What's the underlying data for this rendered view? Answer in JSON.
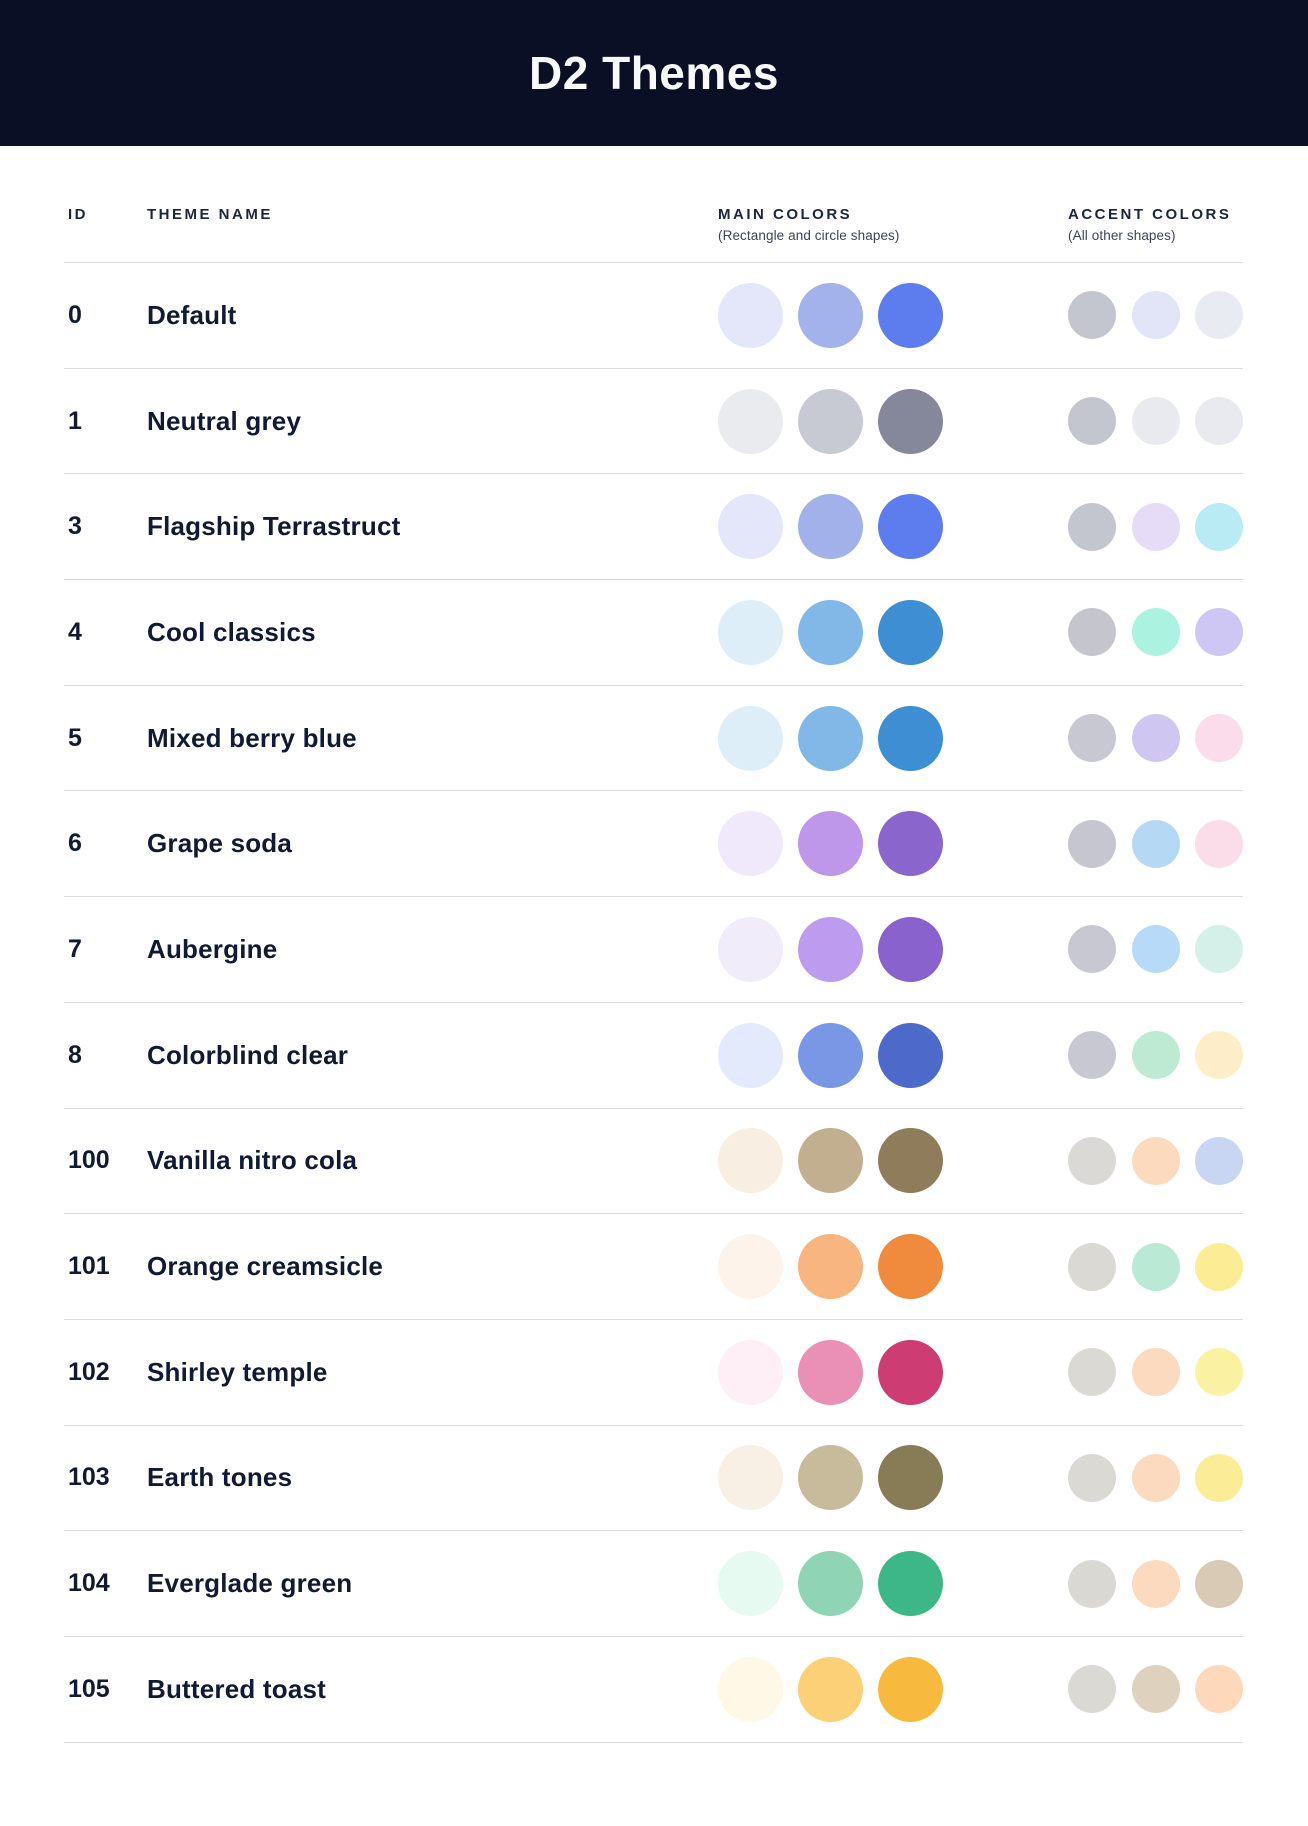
{
  "header": {
    "title": "D2 Themes",
    "background_color": "#0A0F25"
  },
  "table": {
    "columns": {
      "id": "ID",
      "theme_name": "THEME NAME",
      "main_colors": "MAIN COLORS",
      "main_colors_sub": "(Rectangle and circle shapes)",
      "accent_colors": "ACCENT COLORS",
      "accent_colors_sub": "(All other shapes)"
    },
    "rows": [
      {
        "id": "0",
        "name": "Default",
        "main_colors": [
          "#E4E7F9",
          "#A3B2EB",
          "#5D7DEE"
        ],
        "accent_colors": [
          "#C3C5CF",
          "#E2E4F8",
          "#E9EBF2"
        ]
      },
      {
        "id": "1",
        "name": "Neutral grey",
        "main_colors": [
          "#E9EBEE",
          "#C7CAD2",
          "#85889B"
        ],
        "accent_colors": [
          "#C3C5CF",
          "#E9EAEF",
          "#E9EAF0"
        ]
      },
      {
        "id": "3",
        "name": "Flagship Terrastruct",
        "main_colors": [
          "#E4E7F9",
          "#A2B1EA",
          "#5D7DEE"
        ],
        "accent_colors": [
          "#C3C5CF",
          "#E6DCF7",
          "#B9EBF5"
        ]
      },
      {
        "id": "4",
        "name": "Cool classics",
        "main_colors": [
          "#DDEEF9",
          "#82B8E8",
          "#3E8ED3"
        ],
        "accent_colors": [
          "#C5C5CD",
          "#ABF2E1",
          "#CEC6F3"
        ]
      },
      {
        "id": "5",
        "name": "Mixed berry blue",
        "main_colors": [
          "#DDEEF9",
          "#82B8E8",
          "#3E8ED3"
        ],
        "accent_colors": [
          "#C7C8D2",
          "#CFC7F1",
          "#FBDCEB"
        ]
      },
      {
        "id": "6",
        "name": "Grape soda",
        "main_colors": [
          "#F0E9FB",
          "#BE97EA",
          "#8A66CC"
        ],
        "accent_colors": [
          "#C5C6CF",
          "#B5D8F5",
          "#FBDCE9"
        ]
      },
      {
        "id": "7",
        "name": "Aubergine",
        "main_colors": [
          "#F0ECFA",
          "#BD9BEE",
          "#8A62CD"
        ],
        "accent_colors": [
          "#C7C8D1",
          "#B6DAF7",
          "#D5F0E9"
        ]
      },
      {
        "id": "8",
        "name": "Colorblind clear",
        "main_colors": [
          "#E3EAFB",
          "#7A97E6",
          "#4D6ACB"
        ],
        "accent_colors": [
          "#C7C8D2",
          "#BEEAD3",
          "#FDEDC8"
        ]
      },
      {
        "id": "100",
        "name": "Vanilla nitro cola",
        "main_colors": [
          "#F8EEE1",
          "#C2AF90",
          "#8E7C5A"
        ],
        "accent_colors": [
          "#DAD9D5",
          "#FCDABE",
          "#C8D6F4"
        ]
      },
      {
        "id": "101",
        "name": "Orange creamsicle",
        "main_colors": [
          "#FEF3EB",
          "#F9B580",
          "#F08B3D"
        ],
        "accent_colors": [
          "#DAD9D4",
          "#BAEAD5",
          "#FCEC94"
        ]
      },
      {
        "id": "102",
        "name": "Shirley temple",
        "main_colors": [
          "#FDEFF5",
          "#EA8FB5",
          "#CE3C74"
        ],
        "accent_colors": [
          "#DAD9D4",
          "#FCDAC0",
          "#FBF1A2"
        ]
      },
      {
        "id": "103",
        "name": "Earth tones",
        "main_colors": [
          "#F8F0E5",
          "#C8BB9C",
          "#887C57"
        ],
        "accent_colors": [
          "#DAD9D4",
          "#FCDAC0",
          "#FBED97"
        ]
      },
      {
        "id": "104",
        "name": "Everglade green",
        "main_colors": [
          "#E6FAF2",
          "#90D4B6",
          "#3EB788"
        ],
        "accent_colors": [
          "#DAD8D3",
          "#FCDAC0",
          "#D8CAB4"
        ]
      },
      {
        "id": "105",
        "name": "Buttered toast",
        "main_colors": [
          "#FFF8E6",
          "#FCD076",
          "#F8BA3E"
        ],
        "accent_colors": [
          "#DAD9D4",
          "#DED2BE",
          "#FDD8BA"
        ]
      }
    ]
  }
}
